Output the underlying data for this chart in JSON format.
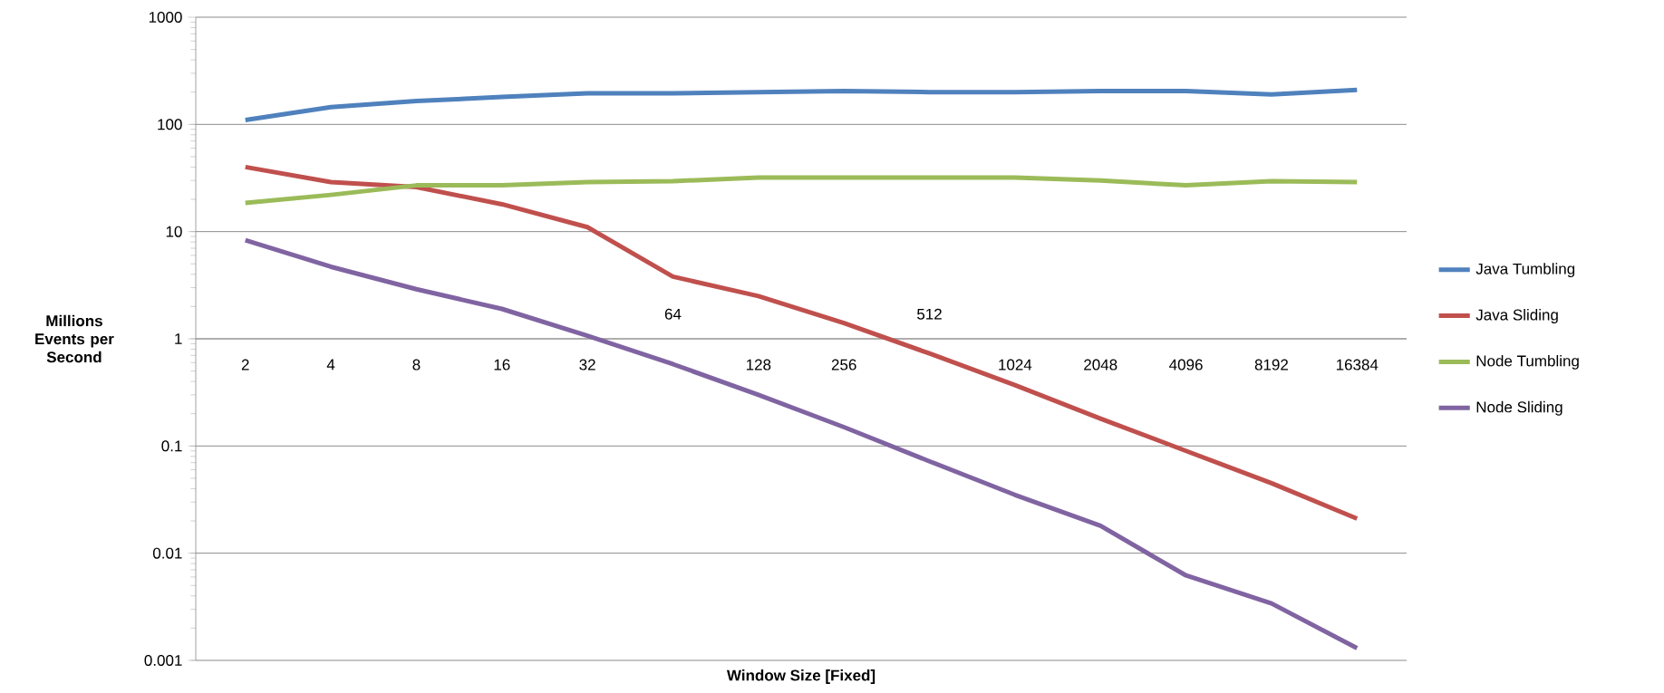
{
  "chart_data": {
    "type": "line",
    "xlabel": "Window Size [Fixed]",
    "ylabel": "Millions Events per Second",
    "categories": [
      "2",
      "4",
      "8",
      "16",
      "32",
      "64",
      "128",
      "256",
      "512",
      "1024",
      "2048",
      "4096",
      "8192",
      "16384"
    ],
    "series": [
      {
        "name": "Java Tumbling",
        "color": "#4f81bd",
        "values": [
          110,
          145,
          165,
          180,
          195,
          195,
          200,
          205,
          200,
          200,
          205,
          205,
          190,
          210
        ]
      },
      {
        "name": "Java Sliding",
        "color": "#c0504d",
        "values": [
          40,
          29,
          26,
          18,
          11,
          3.8,
          2.5,
          1.4,
          0.73,
          0.37,
          0.18,
          0.09,
          0.045,
          0.021
        ]
      },
      {
        "name": "Node Tumbling",
        "color": "#9bbb59",
        "values": [
          18.5,
          22,
          27,
          27,
          29,
          29.5,
          32,
          32,
          32,
          32,
          30,
          27,
          29.5,
          29
        ]
      },
      {
        "name": "Node Sliding",
        "color": "#8064a2",
        "values": [
          8.3,
          4.7,
          2.9,
          1.9,
          1.07,
          0.58,
          0.3,
          0.15,
          0.072,
          0.035,
          0.018,
          0.0062,
          0.0034,
          0.0013
        ]
      }
    ],
    "log": "y",
    "ylim": [
      0.001,
      1000
    ],
    "yticks": [
      0.001,
      0.01,
      0.1,
      1,
      10,
      100,
      1000
    ],
    "grid": "y",
    "legend": "right",
    "marker": "none",
    "line_style": "solid"
  }
}
